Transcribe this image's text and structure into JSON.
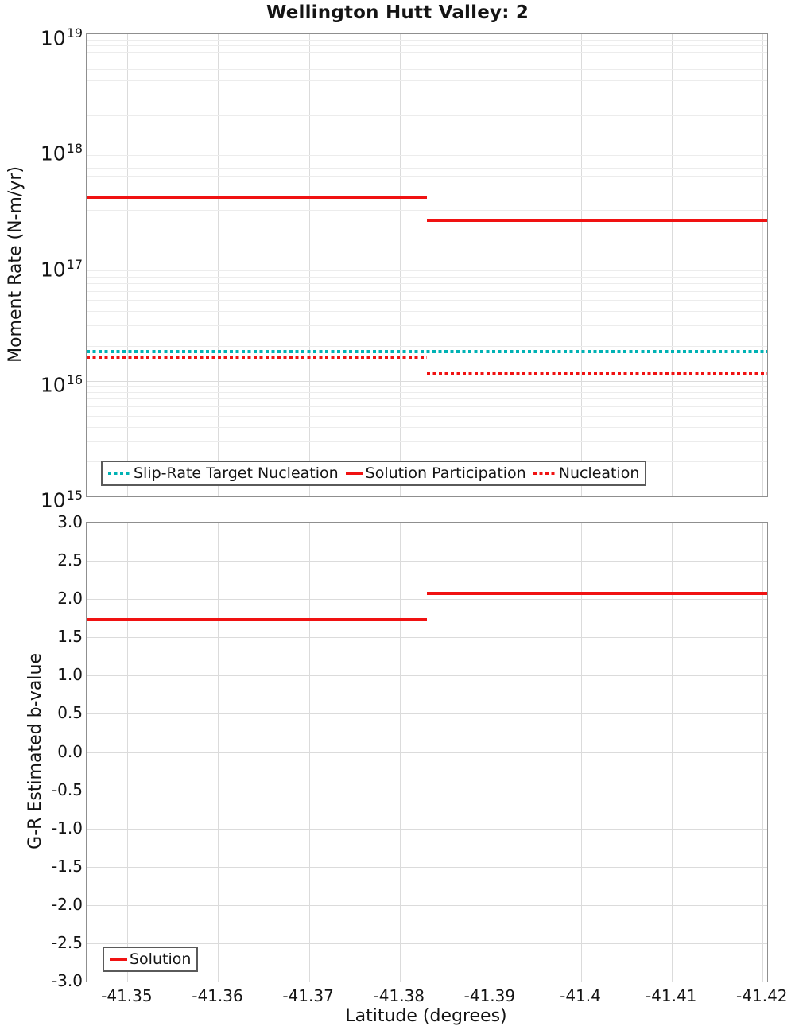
{
  "title": "Wellington Hutt Valley: 2",
  "colors": {
    "red": "#F01212",
    "teal": "#00B2B4",
    "grid_major": "#DBDBDB",
    "grid_minor": "#ECECEC",
    "plot_border": "#8F8F8F",
    "legend_border": "#5A5A5A",
    "text": "#141414",
    "background": "#FFFFFF"
  },
  "chart_data": [
    {
      "type": "line",
      "subtype": "step-horizontal-segments",
      "title": "Wellington Hutt Valley: 2",
      "xlabel": "Latitude (degrees)",
      "ylabel": "Moment Rate (N-m/yr)",
      "yscale": "log",
      "ylim": [
        1000000000000000.0,
        1e+19
      ],
      "y_tick_exponents": [
        19,
        18,
        17,
        16,
        15
      ],
      "xlim": [
        -41.3455,
        -41.4205
      ],
      "x_reversed": true,
      "x_ticks": [
        -41.35,
        -41.36,
        -41.37,
        -41.38,
        -41.39,
        -41.4,
        -41.41,
        -41.42
      ],
      "x_tick_labels": [
        "-41.35",
        "-41.36",
        "-41.37",
        "-41.38",
        "-41.39",
        "-41.4",
        "-41.41",
        "-41.42"
      ],
      "grid": "major-and-log-minor",
      "legend_position": "bottom-left",
      "series": [
        {
          "name": "Slip-Rate Target Nucleation",
          "color_key": "teal",
          "style": "dotted",
          "steps": [
            {
              "x_start": -41.3455,
              "x_end": -41.4205,
              "y": 1.8e+16
            }
          ]
        },
        {
          "name": "Solution Participation",
          "color_key": "red",
          "style": "solid",
          "steps": [
            {
              "x_start": -41.3455,
              "x_end": -41.383,
              "y": 3.9e+17
            },
            {
              "x_start": -41.383,
              "x_end": -41.4205,
              "y": 2.45e+17
            }
          ]
        },
        {
          "name": "Nucleation",
          "color_key": "red",
          "style": "dotted",
          "steps": [
            {
              "x_start": -41.3455,
              "x_end": -41.383,
              "y": 1.6e+16
            },
            {
              "x_start": -41.383,
              "x_end": -41.4205,
              "y": 1.15e+16
            }
          ]
        }
      ]
    },
    {
      "type": "line",
      "subtype": "step-horizontal-segments",
      "ylabel": "G-R Estimated b-value",
      "yscale": "linear",
      "ylim": [
        -3.0,
        3.0
      ],
      "y_tick_values": [
        3.0,
        2.5,
        2.0,
        1.5,
        1.0,
        0.5,
        0.0,
        -0.5,
        -1.0,
        -1.5,
        -2.0,
        -2.5,
        -3.0
      ],
      "y_tick_labels": [
        "3.0",
        "2.5",
        "2.0",
        "1.5",
        "1.0",
        "0.5",
        "0.0",
        "-0.5",
        "-1.0",
        "-1.5",
        "-2.0",
        "-2.5",
        "-3.0"
      ],
      "xlim": [
        -41.3455,
        -41.4205
      ],
      "x_reversed": true,
      "grid": "major",
      "legend_position": "bottom-left",
      "series": [
        {
          "name": "Solution",
          "color_key": "red",
          "style": "solid",
          "steps": [
            {
              "x_start": -41.3455,
              "x_end": -41.383,
              "y": 1.73
            },
            {
              "x_start": -41.383,
              "x_end": -41.4205,
              "y": 2.08
            }
          ]
        }
      ]
    }
  ]
}
